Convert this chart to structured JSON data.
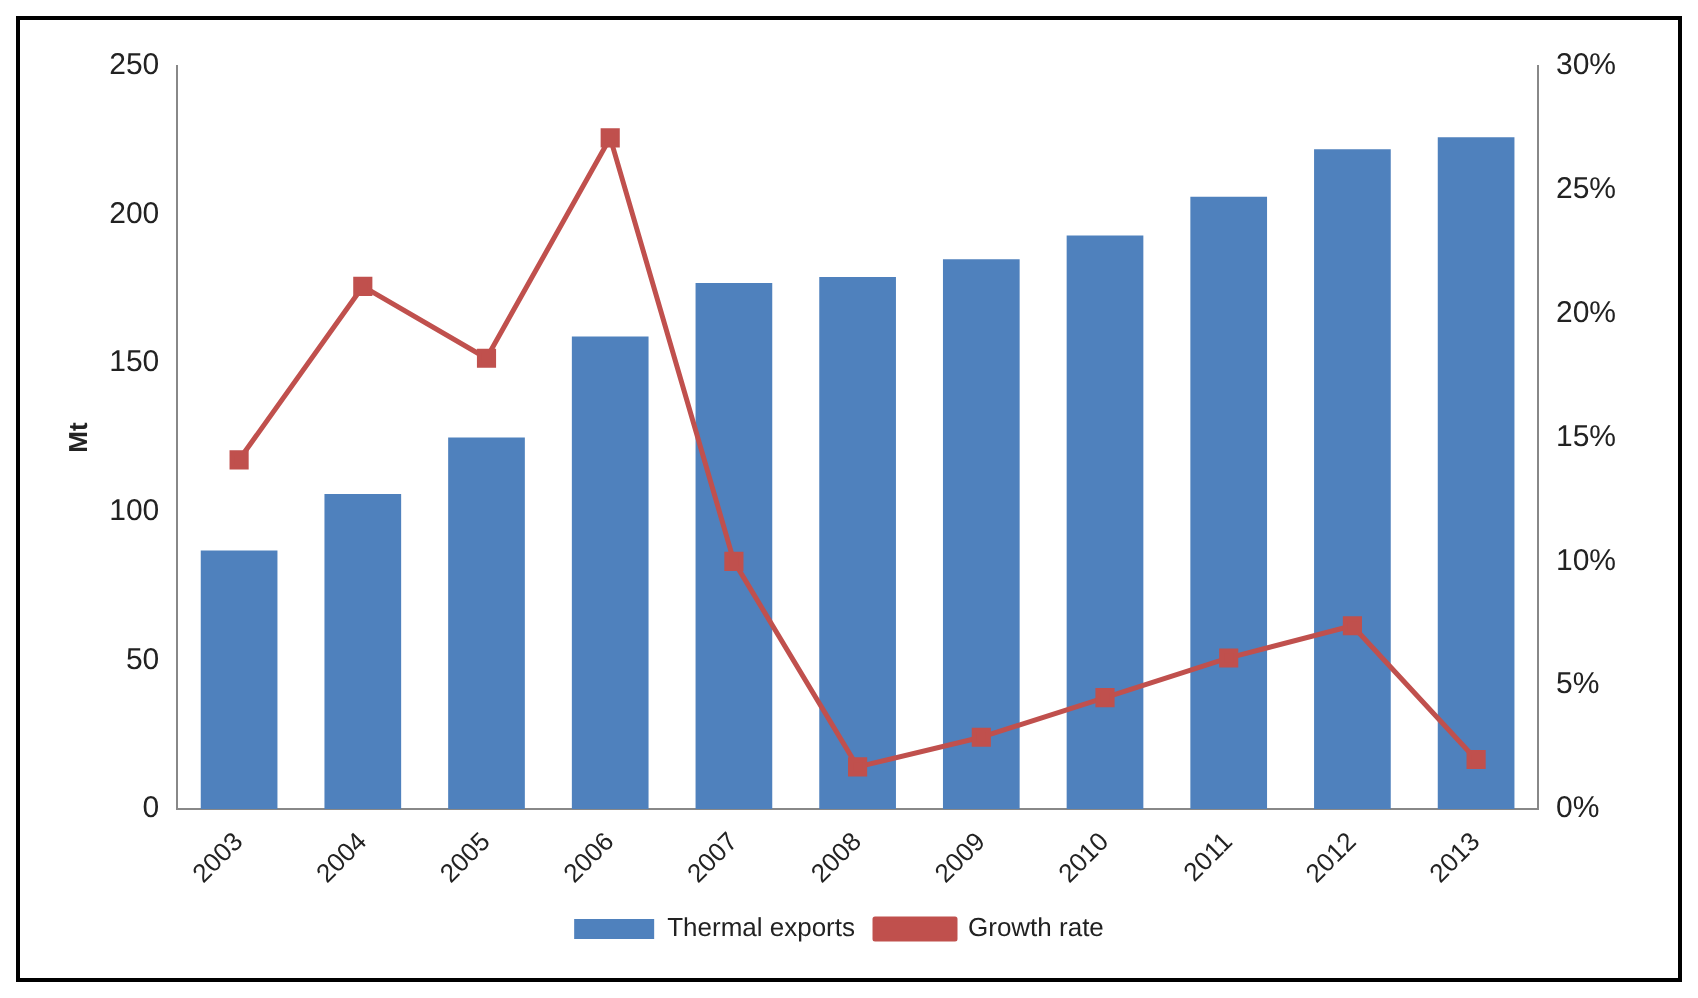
{
  "chart_data": {
    "type": "bar",
    "ylabel": "Mt",
    "categories": [
      "2003",
      "2004",
      "2005",
      "2006",
      "2007",
      "2008",
      "2009",
      "2010",
      "2011",
      "2012",
      "2013"
    ],
    "series": [
      {
        "name": "Thermal exports",
        "color": "#4f81bd",
        "values": [
          87,
          106,
          125,
          159,
          177,
          179,
          185,
          193,
          206,
          222,
          226
        ]
      },
      {
        "name": "Growth rate",
        "type": "line",
        "axis": "y2",
        "color": "#c0504d",
        "marker": "square",
        "values": [
          14.1,
          21.1,
          18.2,
          27.1,
          10.0,
          1.7,
          2.9,
          4.5,
          6.1,
          7.4,
          2.0
        ]
      }
    ],
    "ylim": [
      0,
      250
    ],
    "yticks": [
      0,
      50,
      100,
      150,
      200,
      250
    ],
    "y2lim": [
      0,
      30
    ],
    "y2ticks": [
      {
        "value": 0,
        "label": "0%"
      },
      {
        "value": 5,
        "label": "5%"
      },
      {
        "value": 10,
        "label": "10%"
      },
      {
        "value": 15,
        "label": "15%"
      },
      {
        "value": 20,
        "label": "20%"
      },
      {
        "value": 25,
        "label": "25%"
      },
      {
        "value": 30,
        "label": "30%"
      }
    ],
    "grid": false,
    "legend": "bottom"
  }
}
